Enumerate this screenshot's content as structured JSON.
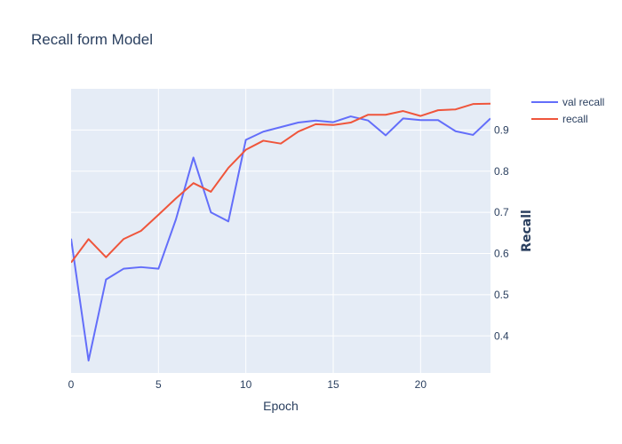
{
  "chart_data": {
    "type": "line",
    "title": "Recall form Model",
    "xlabel": "Epoch",
    "ylabel": "Recall",
    "xlim": [
      0,
      24
    ],
    "ylim": [
      0.31,
      1.0
    ],
    "x_ticks": [
      0,
      5,
      10,
      15,
      20
    ],
    "y_ticks": [
      0.4,
      0.5,
      0.6,
      0.7,
      0.8,
      0.9
    ],
    "x_tick_labels": [
      "0",
      "5",
      "10",
      "15",
      "20"
    ],
    "y_tick_labels": [
      "0.4",
      "0.5",
      "0.6",
      "0.7",
      "0.8",
      "0.9"
    ],
    "grid": true,
    "legend_position": "top-right",
    "x": [
      0,
      1,
      2,
      3,
      4,
      5,
      6,
      7,
      8,
      9,
      10,
      11,
      12,
      13,
      14,
      15,
      16,
      17,
      18,
      19,
      20,
      21,
      22,
      23,
      24
    ],
    "series": [
      {
        "name": "val recall",
        "color": "#636efa",
        "values": [
          0.636,
          0.34,
          0.537,
          0.563,
          0.567,
          0.563,
          0.683,
          0.833,
          0.7,
          0.678,
          0.876,
          0.896,
          0.907,
          0.918,
          0.923,
          0.919,
          0.933,
          0.923,
          0.887,
          0.928,
          0.924,
          0.924,
          0.897,
          0.888,
          0.928
        ]
      },
      {
        "name": "recall",
        "color": "#ef553b",
        "values": [
          0.578,
          0.635,
          0.591,
          0.635,
          0.655,
          0.694,
          0.734,
          0.771,
          0.75,
          0.808,
          0.852,
          0.874,
          0.867,
          0.896,
          0.914,
          0.912,
          0.918,
          0.937,
          0.937,
          0.946,
          0.934,
          0.948,
          0.95,
          0.963,
          0.964
        ]
      }
    ]
  }
}
